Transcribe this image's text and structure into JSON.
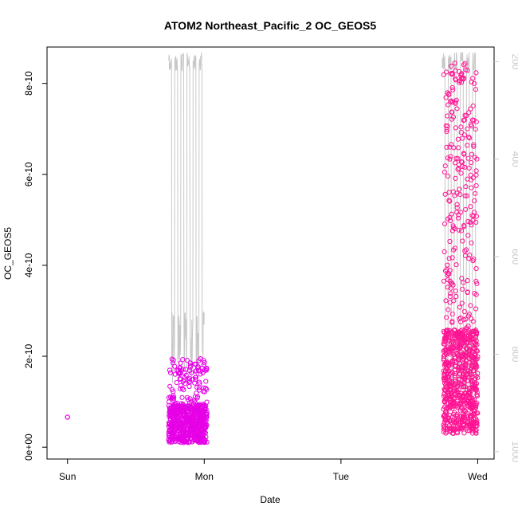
{
  "chart_data": {
    "type": "scatter",
    "title": "ATOM2 Northeast_Pacific_2 OC_GEOS5",
    "xlabel": "Date",
    "ylabel": "OC_GEOS5",
    "x_axis": {
      "type": "date",
      "ticks": [
        "Sun",
        "Mon",
        "Tue",
        "Wed"
      ],
      "tick_days": [
        0,
        1,
        2,
        3
      ],
      "range_days": [
        -0.15,
        3.12
      ]
    },
    "y_axis": {
      "range": [
        -2.6e-11,
        8.8e-10
      ],
      "ticks": [
        0,
        2e-10,
        4e-10,
        6e-10,
        8e-10
      ],
      "tick_labels": [
        "0e+00",
        "2e-10",
        "4e-10",
        "6e-10",
        "8e-10"
      ]
    },
    "right_axis": {
      "label_color": "#c8c8c8",
      "range": [
        1015,
        170
      ],
      "ticks": [
        200,
        400,
        600,
        800,
        1000
      ],
      "tick_labels": [
        "200",
        "400",
        "600",
        "800",
        "1000"
      ]
    },
    "grid": false,
    "series": [
      {
        "color": "#e600e6",
        "marker": "open-circle",
        "points": [
          [
            0.0,
            6.6e-11
          ]
        ],
        "clusters": [
          {
            "x_start": 0.74,
            "x_end": 1.02,
            "y_low": 1e-11,
            "y_high": 1.95e-10,
            "count": 700
          }
        ]
      },
      {
        "color": "#ff1493",
        "marker": "open-circle",
        "clusters": [
          {
            "x_start": 2.75,
            "x_end": 3.0,
            "y_low": 3e-11,
            "y_high": 8.45e-10,
            "count": 900
          }
        ]
      },
      {
        "color": "#c8c8c8",
        "marker": "line",
        "axis": "right",
        "segments": [
          {
            "x_start": 0.74,
            "x_end": 1.0,
            "p_low": 180,
            "p_high": 870
          },
          {
            "x_start": 2.74,
            "x_end": 3.0,
            "p_low": 180,
            "p_high": 900
          }
        ]
      }
    ]
  }
}
